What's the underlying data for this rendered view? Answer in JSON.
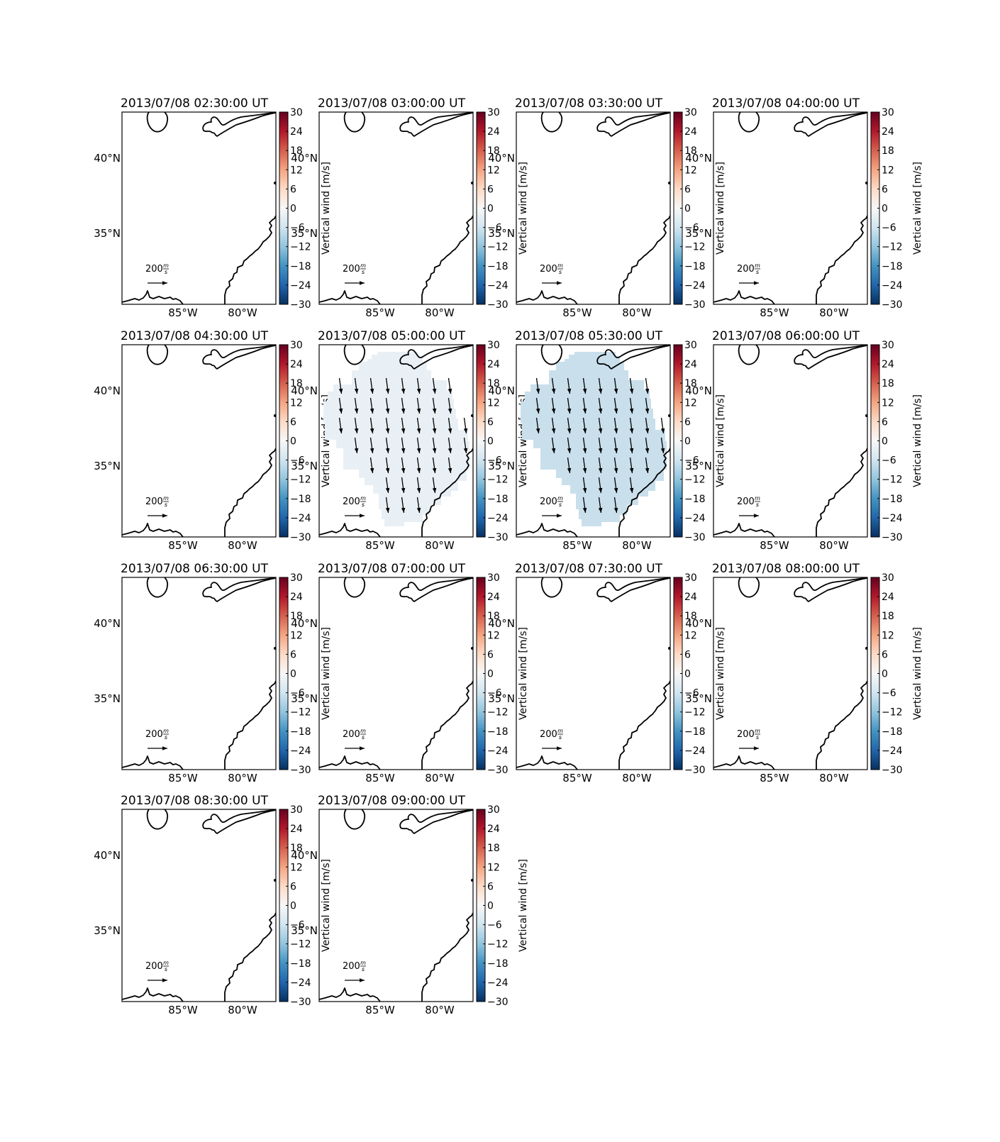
{
  "chart_data": {
    "type": "map-grid",
    "colorbar": {
      "label": "Vertical wind [m/s]",
      "range": [
        -30,
        30
      ],
      "ticks": [
        "30",
        "24",
        "18",
        "12",
        "6",
        "0",
        "−6",
        "−12",
        "−18",
        "−24",
        "−30"
      ],
      "colormap": [
        "#053061",
        "#2166ac",
        "#4393c3",
        "#92c5de",
        "#d1e5f0",
        "#f7f7f7",
        "#fddbc7",
        "#f4a582",
        "#d6604d",
        "#b2182b",
        "#67001f"
      ]
    },
    "lat_ticks": [
      "40°N",
      "35°N"
    ],
    "lon_ticks": [
      "85°W",
      "80°W"
    ],
    "reference_vector": {
      "value": 200,
      "unit_num": "m",
      "unit_den": "s"
    },
    "panels": [
      {
        "title": "2013/07/08 02:30:00 UT",
        "wind": null
      },
      {
        "title": "2013/07/08 03:00:00 UT",
        "wind": null
      },
      {
        "title": "2013/07/08 03:30:00 UT",
        "wind": null
      },
      {
        "title": "2013/07/08 04:00:00 UT",
        "wind": null
      },
      {
        "title": "2013/07/08 04:30:00 UT",
        "wind": null
      },
      {
        "title": "2013/07/08 05:00:00 UT",
        "wind": {
          "vertical": -1,
          "fill": "#e9f0f5",
          "horizontal_speed": 200,
          "direction": "south"
        }
      },
      {
        "title": "2013/07/08 05:30:00 UT",
        "wind": {
          "vertical": -4,
          "fill": "#c9dfec",
          "horizontal_speed": 200,
          "direction": "south"
        }
      },
      {
        "title": "2013/07/08 06:00:00 UT",
        "wind": null
      },
      {
        "title": "2013/07/08 06:30:00 UT",
        "wind": null
      },
      {
        "title": "2013/07/08 07:00:00 UT",
        "wind": null
      },
      {
        "title": "2013/07/08 07:30:00 UT",
        "wind": null
      },
      {
        "title": "2013/07/08 08:00:00 UT",
        "wind": null
      },
      {
        "title": "2013/07/08 08:30:00 UT",
        "wind": null
      },
      {
        "title": "2013/07/08 09:00:00 UT",
        "wind": null
      }
    ]
  }
}
